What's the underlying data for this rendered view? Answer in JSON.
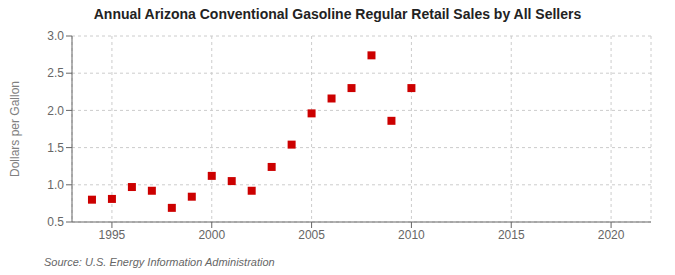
{
  "chart_data": {
    "type": "scatter",
    "title": "Annual Arizona Conventional Gasoline Regular Retail Sales by All Sellers",
    "ylabel": "Dollars per Gallon",
    "annotation": "Source: U.S. Energy Information Administration",
    "x": [
      1994,
      1995,
      1996,
      1997,
      1998,
      1999,
      2000,
      2001,
      2002,
      2003,
      2004,
      2005,
      2006,
      2007,
      2008,
      2009,
      2010
    ],
    "values": [
      0.8,
      0.81,
      0.97,
      0.92,
      0.69,
      0.84,
      1.12,
      1.05,
      0.92,
      1.24,
      1.54,
      1.96,
      2.16,
      2.3,
      2.74,
      1.86,
      2.3
    ],
    "color": "#cc0000",
    "marker": "square",
    "xlim": [
      1993,
      2022
    ],
    "ylim": [
      0.5,
      3.0
    ],
    "xticks": [
      1995,
      2000,
      2005,
      2010,
      2015,
      2020
    ],
    "yticks": [
      0.5,
      {
        "value": 1.0,
        "label": "1.0"
      },
      1.5,
      {
        "value": 2.0,
        "label": "2.0"
      },
      2.5,
      {
        "value": 3.0,
        "label": "3.0"
      }
    ],
    "grid": true
  }
}
